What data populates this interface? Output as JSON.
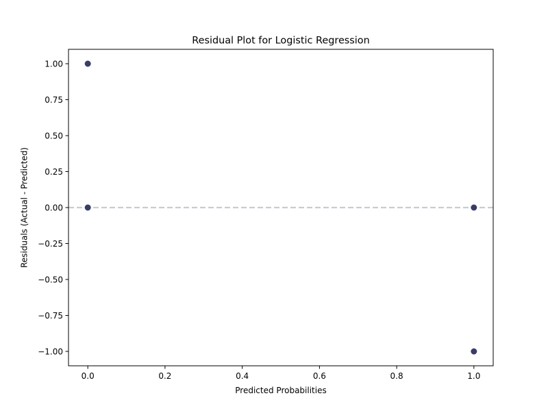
{
  "chart_data": {
    "type": "scatter",
    "title": "Residual Plot for Logistic Regression",
    "xlabel": "Predicted Probabilities",
    "ylabel": "Residuals (Actual - Predicted)",
    "xlim": [
      -0.05,
      1.05
    ],
    "ylim": [
      -1.1,
      1.1
    ],
    "xticks": [
      0.0,
      0.2,
      0.4,
      0.6,
      0.8,
      1.0
    ],
    "xtick_labels": [
      "0.0",
      "0.2",
      "0.4",
      "0.6",
      "0.8",
      "1.0"
    ],
    "yticks": [
      1.0,
      0.75,
      0.5,
      0.25,
      0.0,
      -0.25,
      -0.5,
      -0.75,
      -1.0
    ],
    "ytick_labels": [
      "1.00",
      "0.75",
      "0.50",
      "0.25",
      "0.00",
      "−0.25",
      "−0.50",
      "−0.75",
      "−1.00"
    ],
    "grid": false,
    "points": [
      {
        "x": 0.0,
        "y": 1.0
      },
      {
        "x": 0.0,
        "y": 0.0
      },
      {
        "x": 1.0,
        "y": 0.0
      },
      {
        "x": 1.0,
        "y": -1.0
      }
    ],
    "reference_line": {
      "y": 0.0,
      "style": "dashed"
    },
    "colors": {
      "points": "#2f3361",
      "reference_line": "#c5cdd9"
    }
  }
}
